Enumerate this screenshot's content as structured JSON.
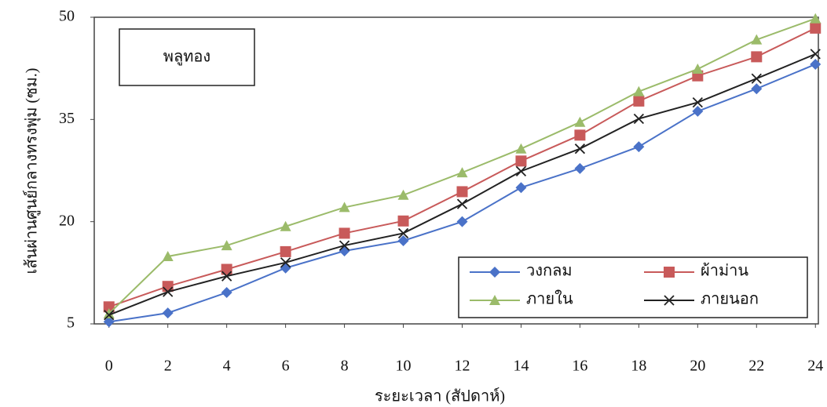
{
  "chart_data": {
    "type": "line",
    "title": "พลูทอง",
    "x_label": "ระยะเวลา (สัปดาห์)",
    "y_label": "เส้นผ่านศูนย์กลางทรงพุ่ม (ซม.)",
    "x": [
      0,
      2,
      4,
      6,
      8,
      10,
      12,
      14,
      16,
      18,
      20,
      22,
      24
    ],
    "xlim": [
      -0.5,
      24.1
    ],
    "xticks": [
      0,
      2,
      4,
      6,
      8,
      10,
      12,
      14,
      16,
      18,
      20,
      22,
      24
    ],
    "ylim": [
      5,
      50
    ],
    "yticks": [
      5,
      20,
      35,
      50
    ],
    "grid": false,
    "legend": "lower right",
    "series": [
      {
        "name": "วงกลม",
        "color": "#4a72c8",
        "marker": "diamond",
        "values": [
          5.3,
          6.6,
          9.6,
          13.2,
          15.7,
          17.2,
          20,
          25,
          27.8,
          31,
          36.2,
          39.5,
          43.1
        ]
      },
      {
        "name": "ผ้าม่าน",
        "color": "#c85a5a",
        "marker": "square",
        "values": [
          7.5,
          10.5,
          13,
          15.6,
          18.3,
          20.1,
          24.4,
          28.9,
          32.7,
          37.7,
          41.4,
          44.2,
          48.4
        ]
      },
      {
        "name": "ภายใน",
        "color": "#9bbb6a",
        "marker": "triangle",
        "values": [
          6.5,
          14.9,
          16.5,
          19.3,
          22.1,
          23.9,
          27.2,
          30.7,
          34.6,
          39.1,
          42.4,
          46.7,
          49.8
        ]
      },
      {
        "name": "ภายนอก",
        "color": "#222222",
        "marker": "x",
        "values": [
          6.3,
          9.7,
          12,
          14,
          16.5,
          18.3,
          22.6,
          27.4,
          30.7,
          35.1,
          37.5,
          41,
          44.6
        ]
      }
    ]
  }
}
